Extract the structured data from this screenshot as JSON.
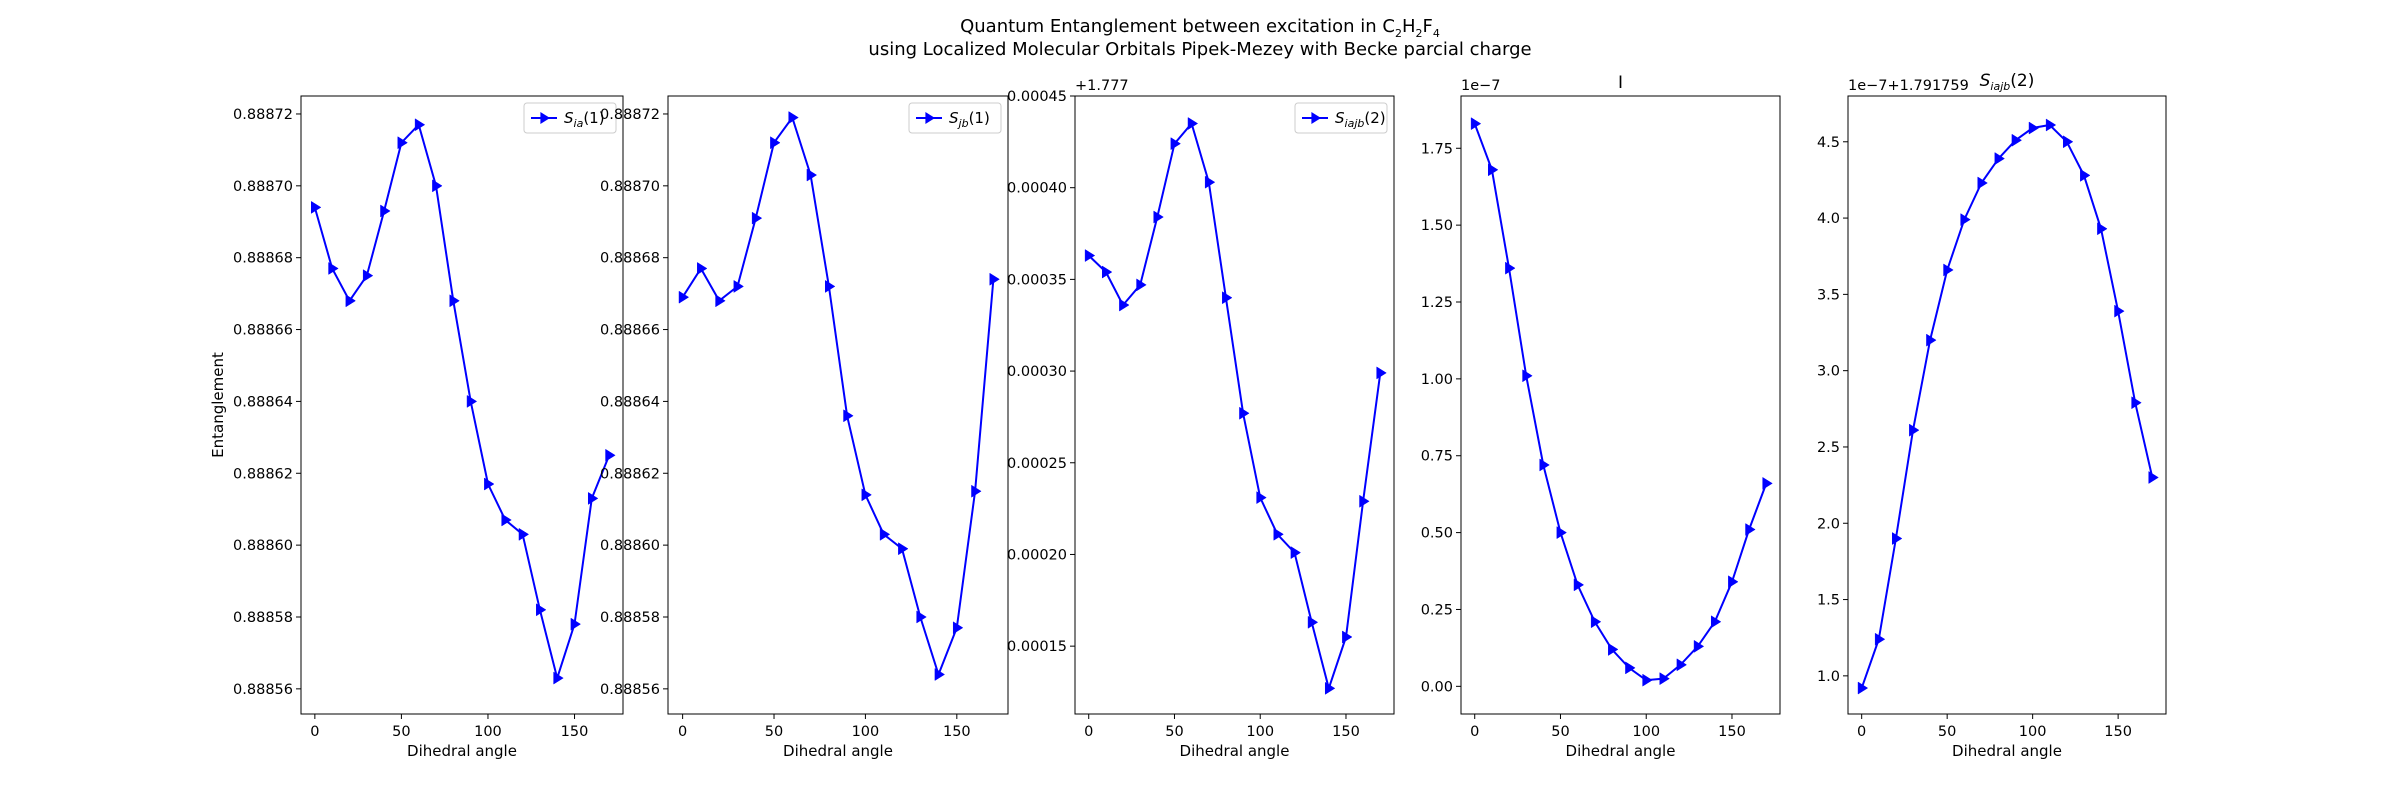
{
  "figure": {
    "title_line1_parts": [
      "Quantum Entanglement between excitation in C",
      "2",
      "H",
      "2",
      "F",
      "4"
    ],
    "title_line2": "using Localized Molecular Orbitals Pipek-Mezey with Becke parcial charge"
  },
  "chart_data": [
    {
      "type": "line",
      "title": "",
      "xlabel": "Dihedral angle",
      "ylabel": "Entanglement",
      "xlim": [
        -8,
        178
      ],
      "ylim": [
        0.888553,
        0.888725
      ],
      "x_ticks": [
        0,
        50,
        100,
        150
      ],
      "y_ticks": [
        0.88856,
        0.88858,
        0.8886,
        0.88862,
        0.88864,
        0.88866,
        0.88868,
        0.8887,
        0.88872
      ],
      "y_tick_labels": [
        "0.88856",
        "0.88858",
        "0.88860",
        "0.88862",
        "0.88864",
        "0.88866",
        "0.88868",
        "0.88870",
        "0.88872"
      ],
      "offset_text": "",
      "legend": "top-right",
      "grid": false,
      "color": "#0000ff",
      "marker": "triangle-right",
      "series": [
        {
          "name_parts": [
            "S",
            "ia",
            "(1)"
          ],
          "x": [
            0,
            10,
            20,
            30,
            40,
            50,
            60,
            70,
            80,
            90,
            100,
            110,
            120,
            130,
            140,
            150,
            160,
            170
          ],
          "values": [
            0.888694,
            0.888677,
            0.888668,
            0.888675,
            0.888693,
            0.888712,
            0.888717,
            0.8887,
            0.888668,
            0.88864,
            0.888617,
            0.888607,
            0.888603,
            0.888582,
            0.888563,
            0.888578,
            0.888613,
            0.888625
          ]
        }
      ]
    },
    {
      "type": "line",
      "title": "",
      "xlabel": "Dihedral angle",
      "ylabel": "",
      "xlim": [
        -8,
        178
      ],
      "ylim": [
        0.888553,
        0.888725
      ],
      "x_ticks": [
        0,
        50,
        100,
        150
      ],
      "y_ticks": [
        0.88856,
        0.88858,
        0.8886,
        0.88862,
        0.88864,
        0.88866,
        0.88868,
        0.8887,
        0.88872
      ],
      "y_tick_labels": [
        "0.88856",
        "0.88858",
        "0.88860",
        "0.88862",
        "0.88864",
        "0.88866",
        "0.88868",
        "0.88870",
        "0.88872"
      ],
      "offset_text": "",
      "legend": "top-right",
      "grid": false,
      "color": "#0000ff",
      "marker": "triangle-right",
      "series": [
        {
          "name_parts": [
            "S",
            "jb",
            "(1)"
          ],
          "x": [
            0,
            10,
            20,
            30,
            40,
            50,
            60,
            70,
            80,
            90,
            100,
            110,
            120,
            130,
            140,
            150,
            160,
            170
          ],
          "values": [
            0.888669,
            0.888677,
            0.888668,
            0.888672,
            0.888691,
            0.888712,
            0.888719,
            0.888703,
            0.888672,
            0.888636,
            0.888614,
            0.888603,
            0.888599,
            0.88858,
            0.888564,
            0.888577,
            0.888615,
            0.888674
          ]
        }
      ]
    },
    {
      "type": "line",
      "title": "",
      "xlabel": "Dihedral angle",
      "ylabel": "",
      "xlim": [
        -8,
        178
      ],
      "ylim": [
        0.000113,
        0.00045
      ],
      "x_ticks": [
        0,
        50,
        100,
        150
      ],
      "y_ticks": [
        0.00015,
        0.0002,
        0.00025,
        0.0003,
        0.00035,
        0.0004,
        0.00045
      ],
      "y_tick_labels": [
        "0.00015",
        "0.00020",
        "0.00025",
        "0.00030",
        "0.00035",
        "0.00040",
        "0.00045"
      ],
      "offset_text": "+1.777",
      "legend": "top-right",
      "grid": false,
      "color": "#0000ff",
      "marker": "triangle-right",
      "series": [
        {
          "name_parts": [
            "S",
            "iajb",
            "(2)"
          ],
          "x": [
            0,
            10,
            20,
            30,
            40,
            50,
            60,
            70,
            80,
            90,
            100,
            110,
            120,
            130,
            140,
            150,
            160,
            170
          ],
          "values": [
            0.000363,
            0.000354,
            0.000336,
            0.000347,
            0.000384,
            0.000424,
            0.000435,
            0.000403,
            0.00034,
            0.000277,
            0.000231,
            0.000211,
            0.000201,
            0.000163,
            0.000127,
            0.000155,
            0.000229,
            0.000299
          ]
        }
      ]
    },
    {
      "type": "line",
      "title": "I",
      "xlabel": "Dihedral angle",
      "ylabel": "",
      "xlim": [
        -8,
        178
      ],
      "ylim": [
        -0.09,
        1.92
      ],
      "x_ticks": [
        0,
        50,
        100,
        150
      ],
      "y_ticks": [
        0,
        0.25,
        0.5,
        0.75,
        1.0,
        1.25,
        1.5,
        1.75
      ],
      "y_tick_labels": [
        "0.00",
        "0.25",
        "0.50",
        "0.75",
        "1.00",
        "1.25",
        "1.50",
        "1.75"
      ],
      "offset_text": "1e−7",
      "legend": "none",
      "grid": false,
      "color": "#0000ff",
      "marker": "triangle-right",
      "series": [
        {
          "x": [
            0,
            10,
            20,
            30,
            40,
            50,
            60,
            70,
            80,
            90,
            100,
            110,
            120,
            130,
            140,
            150,
            160,
            170
          ],
          "values": [
            1.83,
            1.68,
            1.36,
            1.01,
            0.72,
            0.5,
            0.33,
            0.21,
            0.12,
            0.06,
            0.02,
            0.025,
            0.07,
            0.13,
            0.21,
            0.34,
            0.51,
            0.66
          ]
        }
      ]
    },
    {
      "type": "line",
      "title_parts": [
        "S",
        "iajb",
        "(2)"
      ],
      "xlabel": "Dihedral angle",
      "ylabel": "",
      "xlim": [
        -8,
        178
      ],
      "ylim": [
        0.75,
        4.8
      ],
      "x_ticks": [
        0,
        50,
        100,
        150
      ],
      "y_ticks": [
        1.0,
        1.5,
        2.0,
        2.5,
        3.0,
        3.5,
        4.0,
        4.5
      ],
      "y_tick_labels": [
        "1.0",
        "1.5",
        "2.0",
        "2.5",
        "3.0",
        "3.5",
        "4.0",
        "4.5"
      ],
      "offset_text": "1e−7+1.791759",
      "legend": "none",
      "grid": false,
      "color": "#0000ff",
      "marker": "triangle-right",
      "series": [
        {
          "x": [
            0,
            10,
            20,
            30,
            40,
            50,
            60,
            70,
            80,
            90,
            100,
            110,
            120,
            130,
            140,
            150,
            160,
            170
          ],
          "values": [
            0.92,
            1.24,
            1.9,
            2.61,
            3.2,
            3.66,
            3.99,
            4.23,
            4.39,
            4.51,
            4.59,
            4.61,
            4.5,
            4.28,
            3.93,
            3.39,
            2.79,
            2.3
          ]
        }
      ]
    }
  ]
}
